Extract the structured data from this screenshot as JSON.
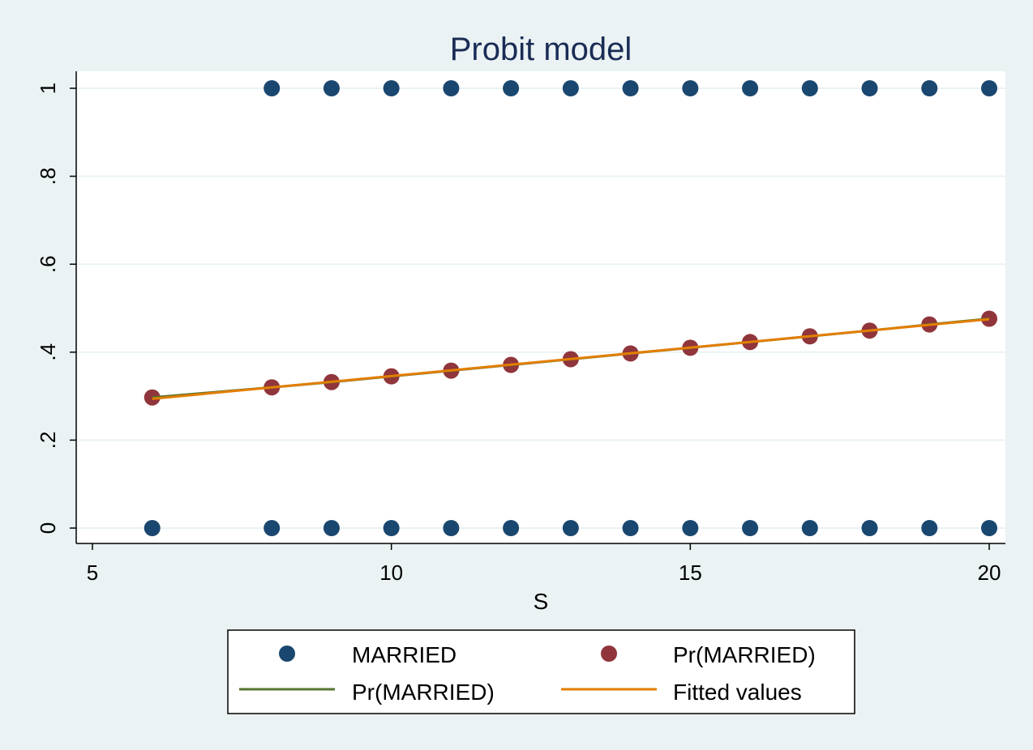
{
  "chart_data": {
    "type": "scatter",
    "title": "Probit model",
    "xlabel": "S",
    "ylabel": "",
    "xlim": [
      5,
      20
    ],
    "ylim": [
      0,
      1
    ],
    "x_ticks": [
      5,
      10,
      15,
      20
    ],
    "x_tick_labels": [
      "5",
      "10",
      "15",
      "20"
    ],
    "y_ticks": [
      0,
      0.2,
      0.4,
      0.6,
      0.8,
      1
    ],
    "y_tick_labels": [
      "0",
      ".2",
      ".4",
      ".6",
      ".8",
      "1"
    ],
    "grid": true,
    "legend_position": "bottom",
    "series": [
      {
        "name": "MARRIED",
        "kind": "scatter",
        "color": "#1a476f",
        "x": [
          6,
          8,
          9,
          10,
          11,
          12,
          13,
          14,
          15,
          16,
          17,
          18,
          19,
          20,
          8,
          9,
          10,
          11,
          12,
          13,
          14,
          15,
          16,
          17,
          18,
          19,
          20
        ],
        "y": [
          0,
          0,
          0,
          0,
          0,
          0,
          0,
          0,
          0,
          0,
          0,
          0,
          0,
          0,
          1,
          1,
          1,
          1,
          1,
          1,
          1,
          1,
          1,
          1,
          1,
          1,
          1
        ]
      },
      {
        "name": "Pr(MARRIED)",
        "kind": "scatter",
        "color": "#90353b",
        "x": [
          6,
          8,
          9,
          10,
          11,
          12,
          13,
          14,
          15,
          16,
          17,
          18,
          19,
          20
        ],
        "y": [
          0.297,
          0.32,
          0.332,
          0.345,
          0.358,
          0.371,
          0.384,
          0.397,
          0.41,
          0.423,
          0.436,
          0.449,
          0.463,
          0.476
        ]
      },
      {
        "name": "Pr(MARRIED)",
        "kind": "line",
        "color": "#55752f",
        "x": [
          6,
          8,
          9,
          10,
          11,
          12,
          13,
          14,
          15,
          16,
          17,
          18,
          19,
          20
        ],
        "y": [
          0.297,
          0.32,
          0.332,
          0.345,
          0.358,
          0.371,
          0.384,
          0.397,
          0.41,
          0.423,
          0.436,
          0.449,
          0.463,
          0.476
        ]
      },
      {
        "name": "Fitted values",
        "kind": "line",
        "color": "#e37e00",
        "x": [
          6,
          20
        ],
        "y": [
          0.294,
          0.475
        ]
      }
    ]
  }
}
